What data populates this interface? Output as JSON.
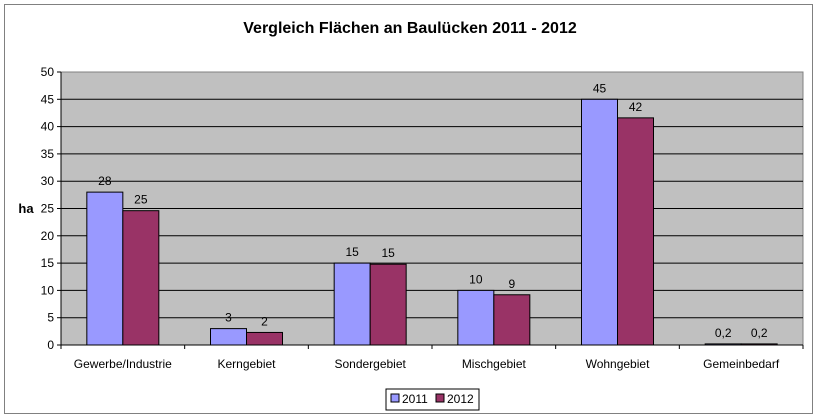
{
  "chart_data": {
    "type": "bar",
    "title": "Vergleich Flächen an Baulücken 2011 - 2012",
    "xlabel": "",
    "ylabel": "ha",
    "ylim": [
      0,
      50
    ],
    "yticks": [
      0,
      5,
      10,
      15,
      20,
      25,
      30,
      35,
      40,
      45,
      50
    ],
    "grid": true,
    "legend_position": "bottom-center",
    "categories": [
      "Gewerbe/Industrie",
      "Kerngebiet",
      "Sondergebiet",
      "Mischgebiet",
      "Wohngebiet",
      "Gemeinbedarf"
    ],
    "series": [
      {
        "name": "2011",
        "color": "#9999FF",
        "values": [
          28,
          3,
          15,
          10,
          45,
          0.2
        ],
        "labels": [
          "28",
          "3",
          "15",
          "10",
          "45",
          "0,2"
        ]
      },
      {
        "name": "2012",
        "color": "#993366",
        "values": [
          24.6,
          2.3,
          14.8,
          9.2,
          41.6,
          0.2
        ],
        "labels": [
          "25",
          "2",
          "15",
          "9",
          "42",
          "0,2"
        ]
      }
    ],
    "plot_background": "#C0C0C0"
  }
}
